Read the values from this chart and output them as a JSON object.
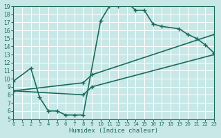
{
  "xlabel": "Humidex (Indice chaleur)",
  "ylabel": "",
  "bg_color": "#c8e8e8",
  "line_color": "#1a6b5a",
  "grid_color": "#ffffff",
  "xlim": [
    0,
    23
  ],
  "ylim": [
    5,
    19
  ],
  "xticks": [
    0,
    1,
    2,
    3,
    4,
    5,
    6,
    7,
    8,
    9,
    10,
    11,
    12,
    13,
    14,
    15,
    16,
    17,
    18,
    19,
    20,
    21,
    22,
    23
  ],
  "yticks": [
    5,
    6,
    7,
    8,
    9,
    10,
    11,
    12,
    13,
    14,
    15,
    16,
    17,
    18,
    19
  ],
  "curve1_x": [
    0,
    2,
    3,
    4,
    5,
    6,
    7,
    8,
    10,
    11,
    12,
    13,
    14,
    15,
    16,
    17,
    19,
    20,
    21,
    22,
    23
  ],
  "curve1_y": [
    9.7,
    11.3,
    7.7,
    6.0,
    6.0,
    5.5,
    5.5,
    5.5,
    17.2,
    19.0,
    19.0,
    19.5,
    18.5,
    18.5,
    16.8,
    16.5,
    16.2,
    15.5,
    15.0,
    14.2,
    13.2
  ],
  "curve2_x": [
    0,
    8,
    9,
    23
  ],
  "curve2_y": [
    8.5,
    8.0,
    9.0,
    13.0
  ],
  "curve3_x": [
    0,
    8,
    9,
    23
  ],
  "curve3_y": [
    8.5,
    9.5,
    10.5,
    15.5
  ],
  "marker": "+",
  "markersize": 5,
  "linewidth": 1.2
}
